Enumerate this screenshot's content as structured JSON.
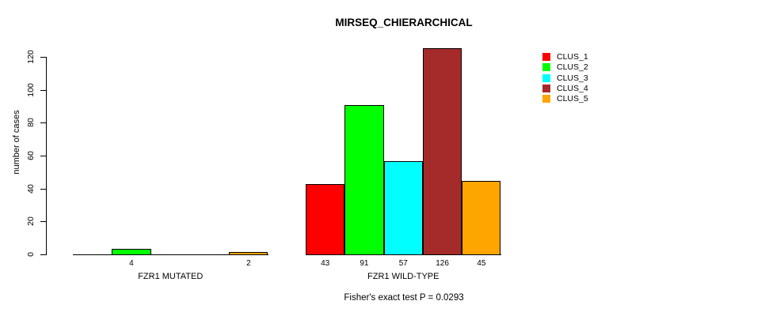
{
  "title": "MIRSEQ_CHIERARCHICAL",
  "y_axis_title": "number of cases",
  "footer_annotation": "Fisher's exact test P = 0.0293",
  "legend": {
    "items": [
      {
        "label": "CLUS_1",
        "color": "#FF0000"
      },
      {
        "label": "CLUS_2",
        "color": "#00FF00"
      },
      {
        "label": "CLUS_3",
        "color": "#00FFFF"
      },
      {
        "label": "CLUS_4",
        "color": "#A52A2A"
      },
      {
        "label": "CLUS_5",
        "color": "#FFA500"
      }
    ]
  },
  "chart_data": {
    "type": "bar",
    "grouped": true,
    "title": "MIRSEQ_CHIERARCHICAL",
    "xlabel": "",
    "ylabel": "number of cases",
    "categories": [
      "FZR1 MUTATED",
      "FZR1 WILD-TYPE"
    ],
    "series": [
      {
        "name": "CLUS_1",
        "color": "#FF0000",
        "values": [
          0,
          43
        ]
      },
      {
        "name": "CLUS_2",
        "color": "#00FF00",
        "values": [
          4,
          91
        ]
      },
      {
        "name": "CLUS_3",
        "color": "#00FFFF",
        "values": [
          0,
          57
        ]
      },
      {
        "name": "CLUS_4",
        "color": "#A52A2A",
        "values": [
          0,
          126
        ]
      },
      {
        "name": "CLUS_5",
        "color": "#FFA500",
        "values": [
          2,
          45
        ]
      }
    ],
    "yticks": [
      0,
      20,
      40,
      60,
      80,
      100,
      120
    ],
    "ylim": [
      0,
      130
    ],
    "grid": false,
    "bar_value_labels": "shown under each bar when value > 0",
    "legend_position": "right",
    "annotation": "Fisher's exact test P = 0.0293"
  }
}
